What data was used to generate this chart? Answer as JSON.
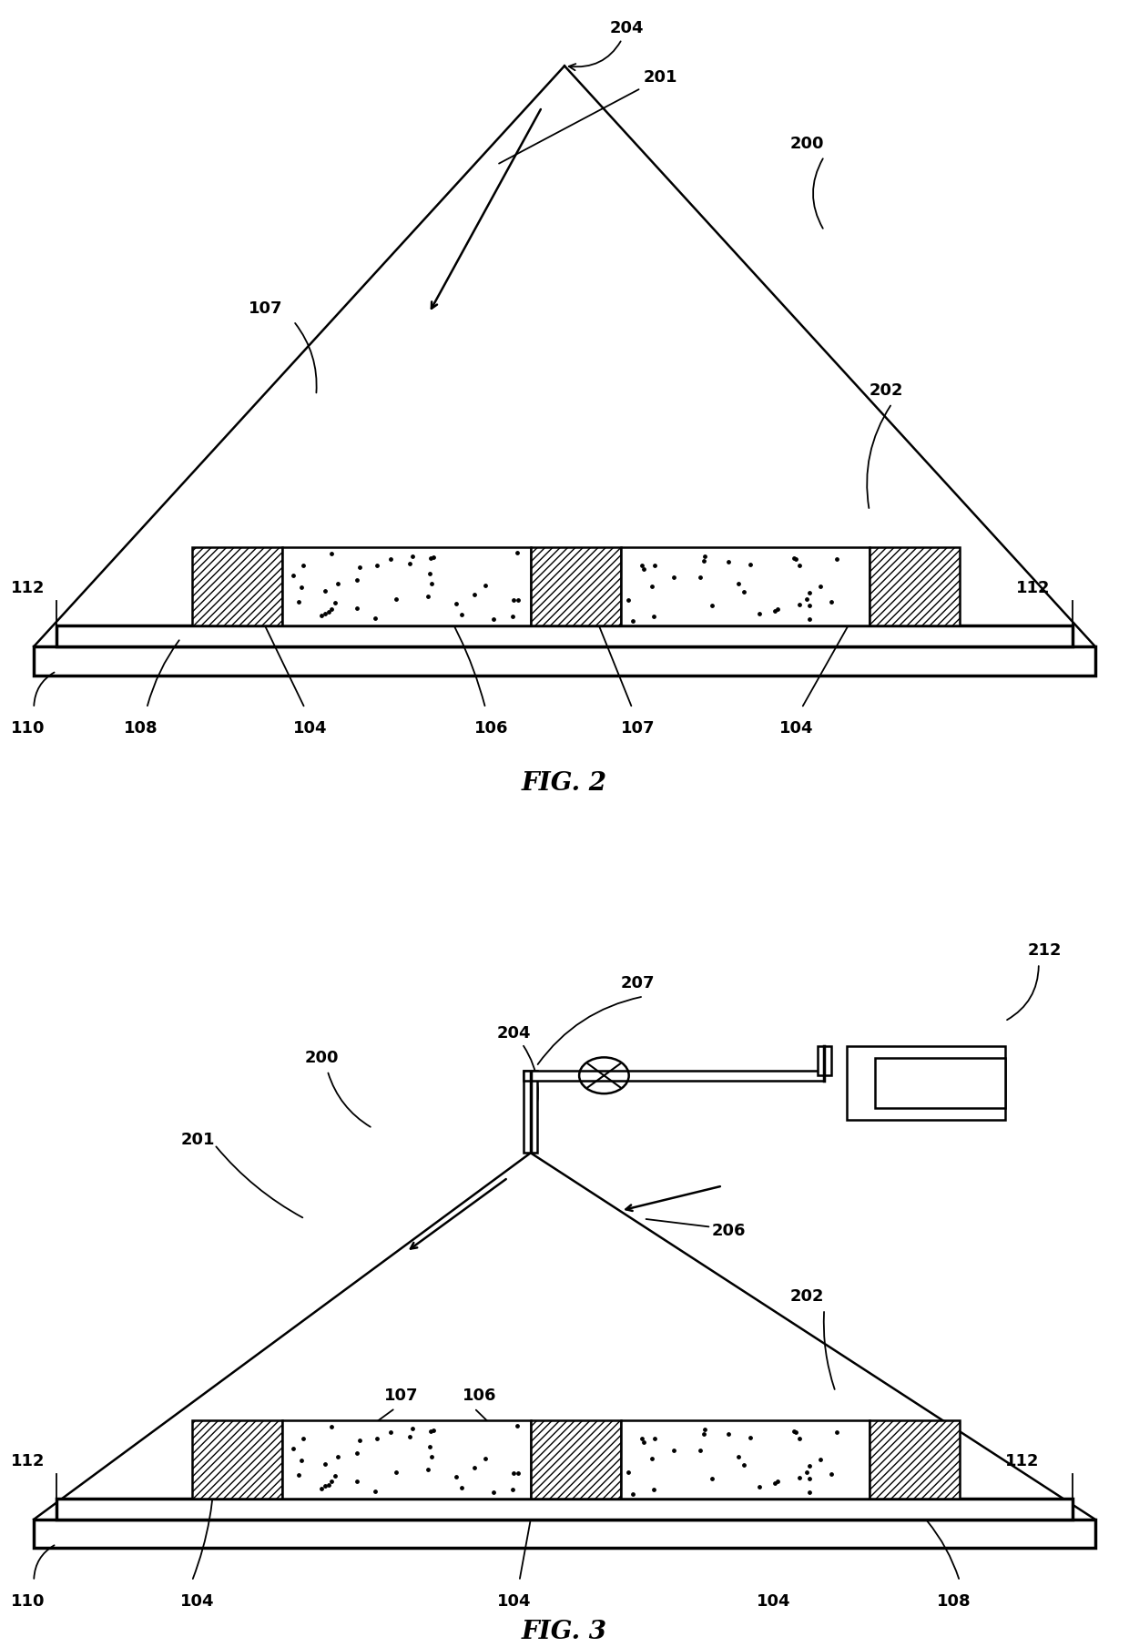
{
  "fig_width": 12.4,
  "fig_height": 18.09,
  "bg_color": "#ffffff",
  "line_color": "#000000",
  "fig2_title": "FIG. 2",
  "fig3_title": "FIG. 3",
  "font_size_label": 13,
  "font_size_title": 20,
  "lw": 1.8,
  "lw_thick": 2.5
}
